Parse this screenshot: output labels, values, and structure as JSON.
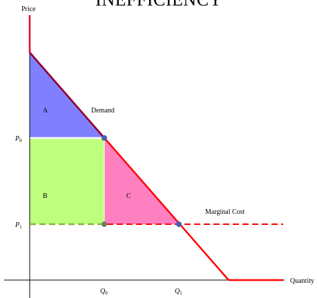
{
  "header": {
    "title": "INEFFICIENCY"
  },
  "axes": {
    "y_label": "Price",
    "x_label": "Quantity"
  },
  "curves": {
    "demand_label": "Demand",
    "marginal_cost_label": "Marginal Cost"
  },
  "regions": {
    "a_label": "A",
    "b_label": "B",
    "c_label": "C"
  },
  "ticks": {
    "p0_var": "P",
    "p0_sub": "0",
    "p1_var": "P",
    "p1_sub": "1",
    "q0_var": "Q",
    "q0_sub": "0",
    "q1_var": "Q",
    "q1_sub": "1"
  },
  "colors": {
    "region_a": "#8080ff",
    "region_b": "#bfff80",
    "region_c": "#ff80c0",
    "demand_line": "#8b0032",
    "supply_line": "#ff0000",
    "dashed_green": "#8db33a",
    "point": "#4a5eb0",
    "axis": "#000000"
  }
}
